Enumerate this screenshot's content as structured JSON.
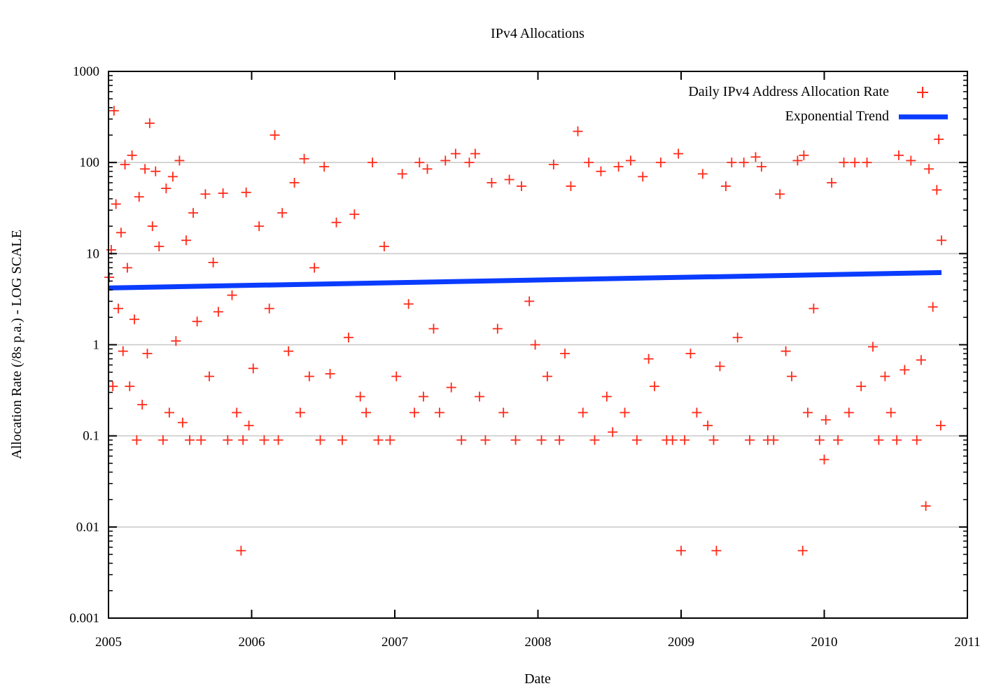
{
  "chart_data": {
    "type": "scatter",
    "title": "IPv4 Allocations",
    "xlabel": "Date",
    "ylabel": "Allocation Rate (/8s p.a.) - LOG SCALE",
    "x_type": "date",
    "xlim": [
      "2005-01-01",
      "2011-01-01"
    ],
    "x_ticks": [
      "2005",
      "2006",
      "2007",
      "2008",
      "2009",
      "2010",
      "2011"
    ],
    "y_scale": "log",
    "ylim": [
      0.001,
      1000
    ],
    "y_ticks": [
      "0.001",
      "0.01",
      "0.1",
      "1",
      "10",
      "100",
      "1000"
    ],
    "grid": "horizontal at decades",
    "legend_position": "top-right",
    "colors": {
      "points": "#ff2a1a",
      "trend": "#0a3cff",
      "grid": "#c8c8c8"
    },
    "series": [
      {
        "name": "Daily IPv4 Address Allocation Rate",
        "style": "plus-markers",
        "points": [
          [
            "2005-01-03",
            5.5
          ],
          [
            "2005-01-08",
            11
          ],
          [
            "2005-01-12",
            0.35
          ],
          [
            "2005-01-15",
            370
          ],
          [
            "2005-01-20",
            35
          ],
          [
            "2005-01-26",
            2.5
          ],
          [
            "2005-02-02",
            17
          ],
          [
            "2005-02-07",
            0.85
          ],
          [
            "2005-02-12",
            95
          ],
          [
            "2005-02-18",
            7
          ],
          [
            "2005-02-24",
            0.35
          ],
          [
            "2005-03-02",
            120
          ],
          [
            "2005-03-08",
            1.9
          ],
          [
            "2005-03-14",
            0.09
          ],
          [
            "2005-03-20",
            42
          ],
          [
            "2005-03-28",
            0.22
          ],
          [
            "2005-04-04",
            85
          ],
          [
            "2005-04-10",
            0.8
          ],
          [
            "2005-04-16",
            270
          ],
          [
            "2005-04-23",
            20
          ],
          [
            "2005-05-01",
            80
          ],
          [
            "2005-05-10",
            12
          ],
          [
            "2005-05-20",
            0.09
          ],
          [
            "2005-05-28",
            52
          ],
          [
            "2005-06-05",
            0.18
          ],
          [
            "2005-06-14",
            70
          ],
          [
            "2005-06-22",
            1.1
          ],
          [
            "2005-07-01",
            105
          ],
          [
            "2005-07-09",
            0.14
          ],
          [
            "2005-07-18",
            14
          ],
          [
            "2005-07-27",
            0.09
          ],
          [
            "2005-08-05",
            28
          ],
          [
            "2005-08-15",
            1.8
          ],
          [
            "2005-08-25",
            0.09
          ],
          [
            "2005-09-05",
            45
          ],
          [
            "2005-09-15",
            0.45
          ],
          [
            "2005-09-25",
            8
          ],
          [
            "2005-10-08",
            2.3
          ],
          [
            "2005-10-20",
            46
          ],
          [
            "2005-11-01",
            0.09
          ],
          [
            "2005-11-12",
            3.5
          ],
          [
            "2005-11-24",
            0.18
          ],
          [
            "2005-12-05",
            0.0055
          ],
          [
            "2005-12-10",
            0.09
          ],
          [
            "2005-12-18",
            47
          ],
          [
            "2005-12-25",
            0.13
          ],
          [
            "2006-01-05",
            0.55
          ],
          [
            "2006-01-20",
            20
          ],
          [
            "2006-02-02",
            0.09
          ],
          [
            "2006-02-15",
            2.5
          ],
          [
            "2006-03-01",
            200
          ],
          [
            "2006-03-10",
            0.09
          ],
          [
            "2006-03-20",
            28
          ],
          [
            "2006-04-05",
            0.85
          ],
          [
            "2006-04-20",
            60
          ],
          [
            "2006-05-05",
            0.18
          ],
          [
            "2006-05-15",
            110
          ],
          [
            "2006-05-28",
            0.45
          ],
          [
            "2006-06-10",
            7
          ],
          [
            "2006-06-25",
            0.09
          ],
          [
            "2006-07-05",
            90
          ],
          [
            "2006-07-20",
            0.48
          ],
          [
            "2006-08-05",
            22
          ],
          [
            "2006-08-20",
            0.09
          ],
          [
            "2006-09-05",
            1.2
          ],
          [
            "2006-09-20",
            27
          ],
          [
            "2006-10-05",
            0.27
          ],
          [
            "2006-10-20",
            0.18
          ],
          [
            "2006-11-05",
            100
          ],
          [
            "2006-11-20",
            0.09
          ],
          [
            "2006-12-05",
            12
          ],
          [
            "2006-12-20",
            0.09
          ],
          [
            "2007-01-05",
            0.45
          ],
          [
            "2007-01-20",
            75
          ],
          [
            "2007-02-05",
            2.8
          ],
          [
            "2007-02-20",
            0.18
          ],
          [
            "2007-03-05",
            100
          ],
          [
            "2007-03-15",
            0.27
          ],
          [
            "2007-03-25",
            85
          ],
          [
            "2007-04-10",
            1.5
          ],
          [
            "2007-04-25",
            0.18
          ],
          [
            "2007-05-10",
            105
          ],
          [
            "2007-05-25",
            0.34
          ],
          [
            "2007-06-05",
            125
          ],
          [
            "2007-06-20",
            0.09
          ],
          [
            "2007-07-10",
            100
          ],
          [
            "2007-07-25",
            125
          ],
          [
            "2007-08-05",
            0.27
          ],
          [
            "2007-08-20",
            0.09
          ],
          [
            "2007-09-05",
            60
          ],
          [
            "2007-09-20",
            1.5
          ],
          [
            "2007-10-05",
            0.18
          ],
          [
            "2007-10-20",
            65
          ],
          [
            "2007-11-05",
            0.09
          ],
          [
            "2007-11-20",
            55
          ],
          [
            "2007-12-10",
            3
          ],
          [
            "2007-12-25",
            1
          ],
          [
            "2008-01-10",
            0.09
          ],
          [
            "2008-01-25",
            0.45
          ],
          [
            "2008-02-10",
            95
          ],
          [
            "2008-02-25",
            0.09
          ],
          [
            "2008-03-10",
            0.8
          ],
          [
            "2008-03-25",
            55
          ],
          [
            "2008-04-12",
            220
          ],
          [
            "2008-04-25",
            0.18
          ],
          [
            "2008-05-10",
            100
          ],
          [
            "2008-05-25",
            0.09
          ],
          [
            "2008-06-10",
            80
          ],
          [
            "2008-06-25",
            0.27
          ],
          [
            "2008-07-10",
            0.11
          ],
          [
            "2008-07-25",
            90
          ],
          [
            "2008-08-10",
            0.18
          ],
          [
            "2008-08-25",
            105
          ],
          [
            "2008-09-10",
            0.09
          ],
          [
            "2008-09-25",
            70
          ],
          [
            "2008-10-10",
            0.7
          ],
          [
            "2008-10-25",
            0.35
          ],
          [
            "2008-11-10",
            100
          ],
          [
            "2008-11-25",
            0.09
          ],
          [
            "2008-12-10",
            0.09
          ],
          [
            "2008-12-25",
            125
          ],
          [
            "2009-01-01",
            0.0055
          ],
          [
            "2009-01-10",
            0.09
          ],
          [
            "2009-01-25",
            0.8
          ],
          [
            "2009-02-10",
            0.18
          ],
          [
            "2009-02-25",
            75
          ],
          [
            "2009-03-10",
            0.13
          ],
          [
            "2009-03-25",
            0.09
          ],
          [
            "2009-04-01",
            0.0055
          ],
          [
            "2009-04-10",
            0.58
          ],
          [
            "2009-04-25",
            55
          ],
          [
            "2009-05-10",
            100
          ],
          [
            "2009-05-25",
            1.2
          ],
          [
            "2009-06-10",
            100
          ],
          [
            "2009-06-25",
            0.09
          ],
          [
            "2009-07-10",
            115
          ],
          [
            "2009-07-25",
            90
          ],
          [
            "2009-08-10",
            0.09
          ],
          [
            "2009-08-25",
            0.09
          ],
          [
            "2009-09-10",
            45
          ],
          [
            "2009-09-25",
            0.85
          ],
          [
            "2009-10-10",
            0.45
          ],
          [
            "2009-10-25",
            105
          ],
          [
            "2009-11-07",
            0.0055
          ],
          [
            "2009-11-10",
            120
          ],
          [
            "2009-11-20",
            0.18
          ],
          [
            "2009-12-05",
            2.5
          ],
          [
            "2009-12-20",
            0.09
          ],
          [
            "2010-01-01",
            0.055
          ],
          [
            "2010-01-05",
            0.15
          ],
          [
            "2010-01-20",
            60
          ],
          [
            "2010-02-05",
            0.09
          ],
          [
            "2010-02-20",
            100
          ],
          [
            "2010-03-05",
            0.18
          ],
          [
            "2010-03-20",
            100
          ],
          [
            "2010-04-05",
            0.35
          ],
          [
            "2010-04-20",
            100
          ],
          [
            "2010-05-05",
            0.95
          ],
          [
            "2010-05-20",
            0.09
          ],
          [
            "2010-06-05",
            0.45
          ],
          [
            "2010-06-20",
            0.18
          ],
          [
            "2010-07-05",
            0.09
          ],
          [
            "2010-07-10",
            120
          ],
          [
            "2010-07-25",
            0.53
          ],
          [
            "2010-08-10",
            105
          ],
          [
            "2010-08-25",
            0.09
          ],
          [
            "2010-09-05",
            0.68
          ],
          [
            "2010-09-17",
            0.017
          ],
          [
            "2010-09-25",
            85
          ],
          [
            "2010-10-05",
            2.6
          ],
          [
            "2010-10-15",
            50
          ],
          [
            "2010-10-20",
            180
          ],
          [
            "2010-10-25",
            0.13
          ],
          [
            "2010-10-27",
            14
          ]
        ]
      },
      {
        "name": "Exponential Trend",
        "style": "line",
        "points": [
          [
            "2005-01-01",
            4.2
          ],
          [
            "2010-10-27",
            6.2
          ]
        ]
      }
    ]
  }
}
